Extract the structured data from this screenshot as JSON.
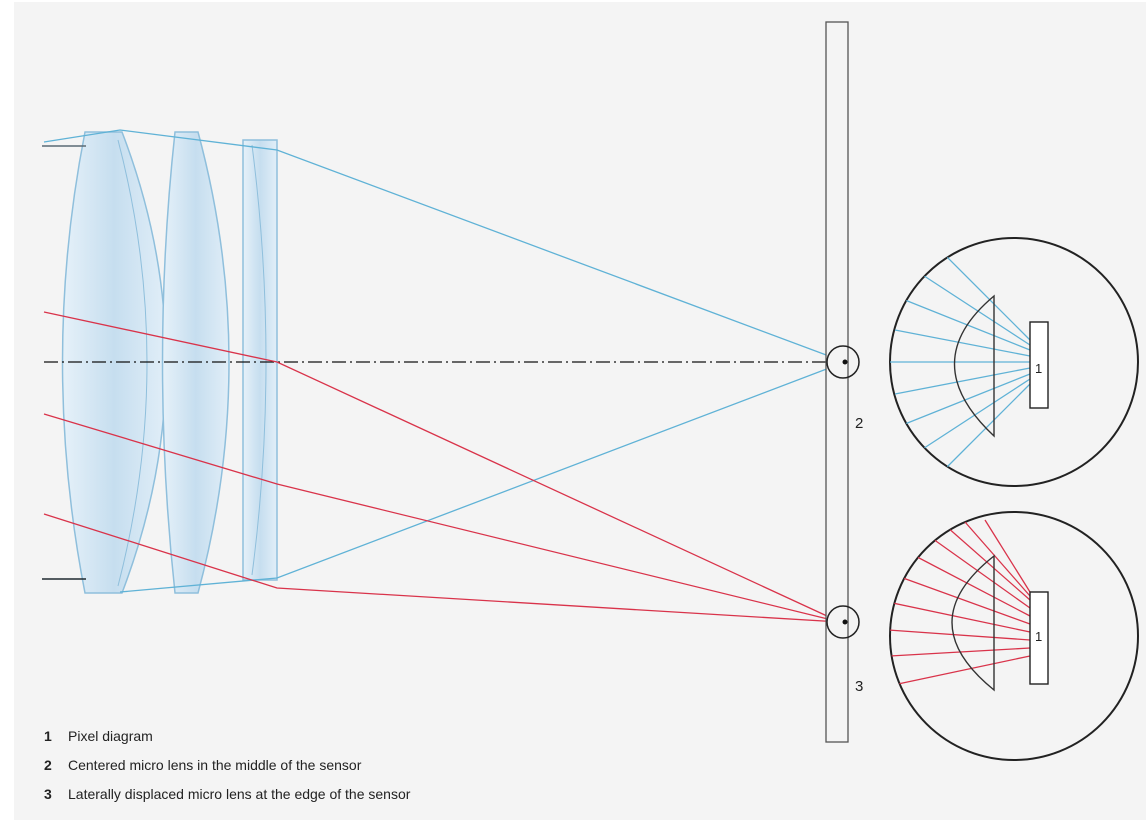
{
  "diagram": {
    "labels": {
      "pixel_top": "1",
      "pixel_bottom": "1",
      "callout_center": "2",
      "callout_edge": "3"
    },
    "legend": [
      {
        "number": "1",
        "text": "Pixel diagram"
      },
      {
        "number": "2",
        "text": "Centered micro lens in the middle of the sensor"
      },
      {
        "number": "3",
        "text": "Laterally displaced micro lens at the edge of the sensor"
      }
    ],
    "colors": {
      "background": "#f4f4f4",
      "axial_rays": "#5fb2d6",
      "oblique_rays": "#d9334a",
      "lens_fill": "#cfe4f2",
      "lens_edge": "#8fbfdc",
      "optical_axis": "#111111",
      "outline": "#333333"
    }
  }
}
